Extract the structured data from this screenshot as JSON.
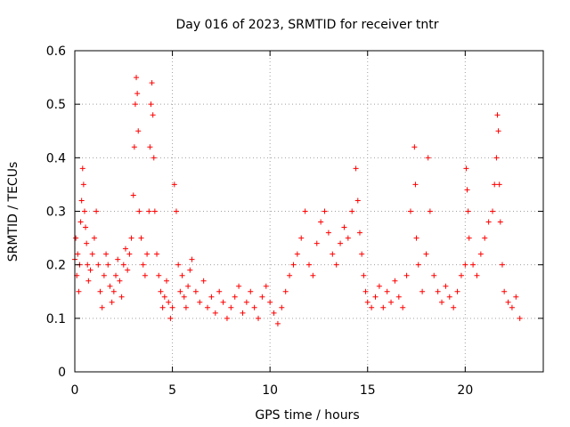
{
  "chart_data": {
    "type": "scatter",
    "title": "Day 016 of 2023, SRMTID for receiver tntr",
    "xlabel": "GPS time / hours",
    "ylabel": "SRMTID / TECUs",
    "xlim": [
      0,
      24
    ],
    "ylim": [
      0,
      0.6
    ],
    "xticks": [
      0,
      5,
      10,
      15,
      20
    ],
    "yticks": [
      0,
      0.1,
      0.2,
      0.3,
      0.4,
      0.5,
      0.6
    ],
    "xtick_labels": [
      "0",
      "5",
      "10",
      "15",
      "20"
    ],
    "ytick_labels": [
      "0",
      "0.1",
      "0.2",
      "0.3",
      "0.4",
      "0.5",
      "0.6"
    ],
    "grid": true,
    "marker": "+",
    "color": "#ff0000",
    "series": [
      {
        "name": "SRMTID",
        "x": [
          0.0,
          0.05,
          0.1,
          0.15,
          0.2,
          0.25,
          0.3,
          0.35,
          0.4,
          0.45,
          0.5,
          0.55,
          0.6,
          0.65,
          0.7,
          0.8,
          0.9,
          1.0,
          1.1,
          1.2,
          1.3,
          1.4,
          1.5,
          1.6,
          1.7,
          1.8,
          1.9,
          2.0,
          2.1,
          2.2,
          2.3,
          2.4,
          2.5,
          2.6,
          2.7,
          2.8,
          2.9,
          3.0,
          3.05,
          3.1,
          3.15,
          3.2,
          3.25,
          3.3,
          3.4,
          3.5,
          3.6,
          3.7,
          3.8,
          3.85,
          3.9,
          3.95,
          4.0,
          4.05,
          4.1,
          4.2,
          4.3,
          4.4,
          4.5,
          4.6,
          4.7,
          4.8,
          4.9,
          5.0,
          5.1,
          5.2,
          5.3,
          5.4,
          5.5,
          5.6,
          5.7,
          5.8,
          5.9,
          6.0,
          6.2,
          6.4,
          6.6,
          6.8,
          7.0,
          7.2,
          7.4,
          7.6,
          7.8,
          8.0,
          8.2,
          8.4,
          8.6,
          8.8,
          9.0,
          9.2,
          9.4,
          9.6,
          9.8,
          10.0,
          10.2,
          10.4,
          10.6,
          10.8,
          11.0,
          11.2,
          11.4,
          11.6,
          11.8,
          12.0,
          12.2,
          12.4,
          12.6,
          12.8,
          13.0,
          13.2,
          13.4,
          13.6,
          13.8,
          14.0,
          14.2,
          14.4,
          14.5,
          14.6,
          14.7,
          14.8,
          14.9,
          15.0,
          15.2,
          15.4,
          15.6,
          15.8,
          16.0,
          16.2,
          16.4,
          16.6,
          16.8,
          17.0,
          17.2,
          17.4,
          17.45,
          17.5,
          17.6,
          17.8,
          18.0,
          18.1,
          18.2,
          18.4,
          18.6,
          18.8,
          19.0,
          19.2,
          19.4,
          19.6,
          19.8,
          20.0,
          20.05,
          20.1,
          20.15,
          20.2,
          20.4,
          20.6,
          20.8,
          21.0,
          21.2,
          21.4,
          21.5,
          21.6,
          21.65,
          21.7,
          21.75,
          21.8,
          21.9,
          22.0,
          22.2,
          22.4,
          22.6,
          22.8
        ],
        "y": [
          0.21,
          0.25,
          0.18,
          0.22,
          0.15,
          0.2,
          0.28,
          0.32,
          0.38,
          0.35,
          0.3,
          0.27,
          0.24,
          0.2,
          0.17,
          0.19,
          0.22,
          0.25,
          0.3,
          0.2,
          0.15,
          0.12,
          0.18,
          0.22,
          0.2,
          0.16,
          0.13,
          0.15,
          0.18,
          0.21,
          0.17,
          0.14,
          0.2,
          0.23,
          0.19,
          0.22,
          0.25,
          0.33,
          0.42,
          0.5,
          0.55,
          0.52,
          0.45,
          0.3,
          0.25,
          0.2,
          0.18,
          0.22,
          0.3,
          0.42,
          0.5,
          0.54,
          0.48,
          0.4,
          0.3,
          0.22,
          0.18,
          0.15,
          0.12,
          0.14,
          0.17,
          0.13,
          0.1,
          0.12,
          0.35,
          0.3,
          0.2,
          0.15,
          0.18,
          0.14,
          0.12,
          0.16,
          0.19,
          0.21,
          0.15,
          0.13,
          0.17,
          0.12,
          0.14,
          0.11,
          0.15,
          0.13,
          0.1,
          0.12,
          0.14,
          0.16,
          0.11,
          0.13,
          0.15,
          0.12,
          0.1,
          0.14,
          0.16,
          0.13,
          0.11,
          0.09,
          0.12,
          0.15,
          0.18,
          0.2,
          0.22,
          0.25,
          0.3,
          0.2,
          0.18,
          0.24,
          0.28,
          0.3,
          0.26,
          0.22,
          0.2,
          0.24,
          0.27,
          0.25,
          0.3,
          0.38,
          0.32,
          0.26,
          0.22,
          0.18,
          0.15,
          0.13,
          0.12,
          0.14,
          0.16,
          0.12,
          0.15,
          0.13,
          0.17,
          0.14,
          0.12,
          0.18,
          0.3,
          0.42,
          0.35,
          0.25,
          0.2,
          0.15,
          0.22,
          0.4,
          0.3,
          0.18,
          0.15,
          0.13,
          0.16,
          0.14,
          0.12,
          0.15,
          0.18,
          0.2,
          0.38,
          0.34,
          0.3,
          0.25,
          0.2,
          0.18,
          0.22,
          0.25,
          0.28,
          0.3,
          0.35,
          0.4,
          0.48,
          0.45,
          0.35,
          0.28,
          0.2,
          0.15,
          0.13,
          0.12,
          0.14,
          0.1
        ]
      }
    ]
  }
}
